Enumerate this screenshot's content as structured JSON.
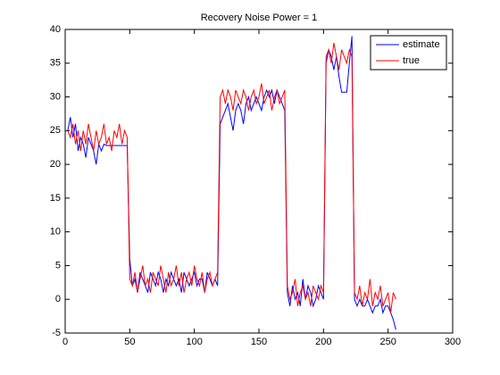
{
  "chart_data": {
    "type": "line",
    "title": "Recovery Noise Power = 1",
    "x": [
      2,
      4,
      6,
      8,
      10,
      12,
      14,
      16,
      18,
      20,
      22,
      24,
      26,
      28,
      30,
      32,
      34,
      36,
      38,
      40,
      42,
      44,
      46,
      48,
      50,
      52,
      54,
      56,
      58,
      60,
      62,
      64,
      66,
      68,
      70,
      72,
      74,
      76,
      78,
      80,
      82,
      84,
      86,
      88,
      90,
      92,
      94,
      96,
      98,
      100,
      102,
      104,
      106,
      108,
      110,
      112,
      114,
      116,
      118,
      120,
      122,
      124,
      126,
      128,
      130,
      132,
      134,
      136,
      138,
      140,
      142,
      144,
      146,
      148,
      150,
      152,
      154,
      156,
      158,
      160,
      162,
      164,
      166,
      168,
      170,
      172,
      174,
      176,
      178,
      180,
      182,
      184,
      186,
      188,
      190,
      192,
      194,
      196,
      198,
      200,
      202,
      204,
      206,
      208,
      210,
      212,
      214,
      216,
      218,
      220,
      222,
      224,
      226,
      228,
      230,
      232,
      234,
      236,
      238,
      240,
      242,
      244,
      246,
      248,
      250,
      252,
      254,
      256
    ],
    "series": [
      {
        "name": "estimate",
        "color": "#0000ff",
        "values": [
          25,
          27,
          24,
          26,
          22,
          24,
          23,
          21,
          24,
          23,
          22,
          20,
          23,
          22,
          23,
          22.8,
          22.8,
          22.8,
          22.8,
          22.8,
          22.8,
          22.8,
          22.8,
          22.8,
          6,
          2,
          3,
          1,
          4,
          3,
          2,
          1,
          4,
          3,
          2,
          4,
          3,
          1,
          3,
          2,
          4,
          3,
          2,
          3,
          1,
          4,
          3,
          2,
          3,
          4,
          2,
          3,
          3,
          1,
          4,
          3,
          2,
          3,
          2,
          26,
          27,
          28,
          29,
          27,
          25,
          28,
          29,
          28,
          26,
          29,
          30,
          28,
          29,
          30,
          29,
          28,
          30,
          31,
          30,
          31,
          29,
          31,
          30,
          29,
          28,
          1,
          -1,
          2,
          0,
          1,
          -1,
          3,
          0,
          2,
          1,
          -1,
          0,
          2,
          1,
          0,
          35,
          37,
          36,
          34,
          36,
          33,
          30.7,
          30.7,
          30.7,
          35,
          39,
          0,
          -1,
          0,
          -1,
          -1,
          0,
          -1,
          -2,
          -1,
          -1,
          0,
          -2,
          -1,
          -1,
          -2,
          -3,
          -4.5
        ]
      },
      {
        "name": "true",
        "color": "#ff0000",
        "values": [
          25,
          24,
          26,
          23,
          25,
          22,
          25,
          23,
          26,
          24,
          22,
          25,
          23,
          24,
          26,
          23,
          24,
          22,
          25,
          24,
          26,
          23,
          25,
          24,
          3,
          2,
          4,
          1,
          3,
          5,
          2,
          3,
          1,
          4,
          3,
          2,
          5,
          3,
          1,
          4,
          2,
          3,
          5,
          2,
          4,
          1,
          3,
          4,
          2,
          5,
          3,
          2,
          4,
          1,
          3,
          4,
          2,
          3,
          4,
          30,
          31,
          29,
          31,
          30,
          28,
          31,
          30,
          29,
          31,
          30,
          28,
          30,
          31,
          29,
          30,
          32,
          29,
          30,
          31,
          28,
          30,
          31,
          29,
          30,
          31,
          2,
          0,
          1,
          3,
          -1,
          1,
          2,
          0,
          1,
          -1,
          2,
          1,
          0,
          2,
          1,
          36,
          37,
          35,
          38,
          36,
          34,
          37,
          36,
          35,
          37,
          36,
          1,
          0,
          2,
          -1,
          1,
          0,
          3,
          -1,
          1,
          0,
          2,
          -1,
          0,
          1,
          -2,
          1,
          0
        ]
      }
    ],
    "xlim": [
      0,
      300
    ],
    "xticks": [
      0,
      50,
      100,
      150,
      200,
      250,
      300
    ],
    "ylim": [
      -5,
      40
    ],
    "yticks": [
      -5,
      0,
      5,
      10,
      15,
      20,
      25,
      30,
      35,
      40
    ],
    "grid": false,
    "legend": "top-right"
  }
}
